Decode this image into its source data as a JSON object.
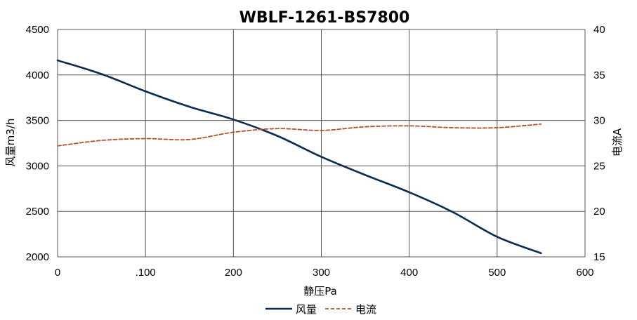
{
  "chart_data": {
    "type": "line",
    "title": "WBLF-1261-BS7800",
    "xlabel": "静压Pa",
    "ylabel_left": "风量m3/h",
    "ylabel_right": "电流A",
    "xlim": [
      0,
      600
    ],
    "ylim_left": [
      2000,
      4500
    ],
    "ylim_right": [
      15,
      40
    ],
    "x_ticks": [
      0,
      100,
      200,
      300,
      400,
      500,
      600
    ],
    "x_tick_labels": [
      "0",
      ".100",
      "200",
      "300",
      "400",
      "500",
      "600"
    ],
    "y_ticks_left": [
      2000,
      2500,
      3000,
      3500,
      4000,
      4500
    ],
    "y_ticks_right": [
      15,
      20,
      25,
      30,
      35,
      40
    ],
    "grid": true,
    "legend_position": "bottom-center",
    "series": [
      {
        "name": "风量",
        "axis": "left",
        "style": "solid",
        "color": "#0d2b4e",
        "x": [
          0,
          50,
          100,
          150,
          200,
          250,
          300,
          350,
          400,
          450,
          500,
          550
        ],
        "y": [
          4160,
          4010,
          3820,
          3650,
          3510,
          3330,
          3100,
          2900,
          2710,
          2490,
          2220,
          2040
        ]
      },
      {
        "name": "电流",
        "axis": "right",
        "style": "dashed",
        "color": "#b5522a",
        "x": [
          0,
          50,
          100,
          150,
          200,
          250,
          300,
          350,
          400,
          450,
          500,
          550
        ],
        "y": [
          27.2,
          27.8,
          28.0,
          27.9,
          28.7,
          29.1,
          28.9,
          29.3,
          29.4,
          29.2,
          29.2,
          29.6
        ]
      }
    ]
  }
}
